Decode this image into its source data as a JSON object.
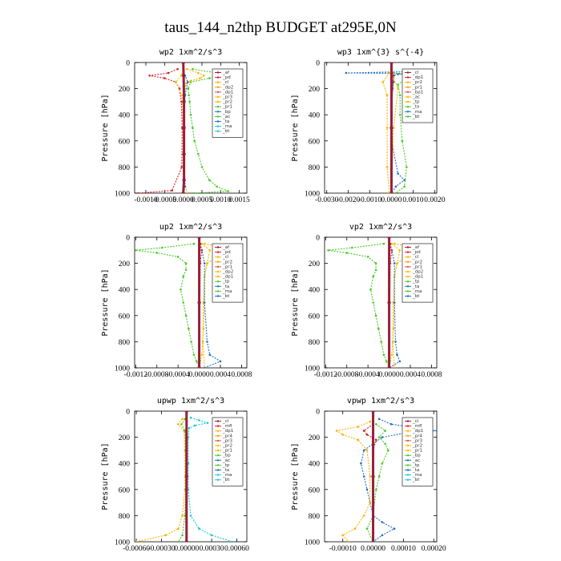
{
  "figure": {
    "title": "taus_144_n2thp  BUDGET at295E,0N"
  },
  "colors": {
    "orange": "#ffb000",
    "red": "#d42020",
    "green": "#44cc22",
    "blue": "#2070c0",
    "cyan": "#18c8d8",
    "purple": "#8a2a8a",
    "maroon": "#9a1e3a",
    "yellow": "#f0c000",
    "lightyellow": "#f5e070"
  },
  "chart_data": [
    {
      "type": "line",
      "title": "wp2   1xm^2/s^3",
      "ylabel": "Pressure [hPa]",
      "xlim": [
        -0.0013,
        0.0017
      ],
      "ylim": [
        1000,
        0
      ],
      "xticks": [
        -0.001,
        -0.0005,
        0.0,
        0.0005,
        0.001,
        0.0015
      ],
      "xtick_labels": [
        "-0.0010",
        "-0.0005",
        "0.0000",
        "0.0005",
        "0.0010",
        "0.0015"
      ],
      "yticks": [
        0,
        200,
        400,
        600,
        800,
        1000
      ],
      "legend": [
        "_af",
        "_pd",
        "_cl",
        "_dp2",
        "_dp1",
        "_pr3",
        "_pr2",
        "_pr1",
        "_bp",
        "_ac",
        "_ta",
        "_ma",
        "_bt"
      ],
      "legend_position": "top-right",
      "series": [
        {
          "color": "green",
          "p": [
            50,
            80,
            100,
            120,
            150,
            200,
            250,
            300,
            400,
            500,
            600,
            700,
            800,
            900,
            950,
            985,
            1000
          ],
          "v": [
            0.00025,
            0.0009,
            0.0015,
            0.0007,
            0.0002,
            0.00013,
            0.00015,
            0.00017,
            0.0002,
            0.00025,
            0.0003,
            0.0004,
            0.0005,
            0.0007,
            0.0009,
            0.0012,
            0.0003
          ]
        },
        {
          "color": "red",
          "p": [
            50,
            80,
            100,
            120,
            150,
            200,
            300,
            500,
            800,
            980,
            1000
          ],
          "v": [
            -0.00015,
            -0.0004,
            -0.0009,
            -0.0005,
            -0.0002,
            -0.0001,
            -5e-05,
            -3e-05,
            -4e-05,
            -0.0003,
            -0.0012
          ]
        },
        {
          "color": "orange",
          "p": [
            50,
            80,
            100,
            120,
            140,
            160,
            200,
            300,
            500,
            700,
            900,
            1000
          ],
          "v": [
            0.0001,
            0.0004,
            0.00055,
            0.00045,
            0.0002,
            8e-05,
            4e-05,
            3e-05,
            2e-05,
            2e-05,
            3e-05,
            0.0001
          ]
        },
        {
          "color": "yellow",
          "p": [
            60,
            100,
            150,
            250,
            500,
            800,
            1000
          ],
          "v": [
            0.0,
            -5e-05,
            -0.0002,
            -3e-05,
            0.0,
            0.0,
            0.0
          ]
        },
        {
          "color": "blue",
          "p": [
            50,
            100,
            150,
            250,
            400,
            700,
            950,
            1000
          ],
          "v": [
            0.0,
            5e-05,
            0.00012,
            5e-05,
            2e-05,
            2e-05,
            5e-05,
            0.0
          ]
        },
        {
          "color": "maroon",
          "p": [
            0,
            100,
            300,
            500,
            700,
            900,
            1000
          ],
          "v": [
            0.0,
            1e-05,
            2e-05,
            2e-05,
            2e-05,
            2e-05,
            0.0
          ]
        }
      ]
    },
    {
      "type": "line",
      "title": "wp3   1xm^{3} s^{-4}",
      "ylabel": "Pressure [hPa]",
      "xlim": [
        -0.0031,
        0.0021
      ],
      "ylim": [
        1000,
        0
      ],
      "xticks": [
        -0.003,
        -0.002,
        -0.001,
        0.0,
        0.001,
        0.002
      ],
      "xtick_labels": [
        "-0.0030",
        "-0.0020",
        "-0.0010",
        "0.0000",
        "0.0010",
        "0.0020"
      ],
      "yticks": [
        0,
        200,
        400,
        600,
        800,
        1000
      ],
      "legend": [
        "_cl",
        "_dp1",
        "_pr2",
        "_pr1",
        "_bp1",
        "_ac",
        "_tp",
        "_ta",
        "_ma",
        "_bt"
      ],
      "legend_position": "top-right",
      "series": [
        {
          "color": "blue",
          "p": [
            70,
            80,
            85,
            90,
            100,
            150,
            300,
            600,
            850,
            900,
            950,
            1000
          ],
          "v": [
            0.0008,
            -0.0021,
            0.0015,
            0.0003,
            0.0001,
            0.0001,
            0.0,
            0.0,
            0.0003,
            0.0006,
            0.0002,
            0.0
          ]
        },
        {
          "color": "green",
          "p": [
            80,
            100,
            130,
            170,
            250,
            400,
            600,
            800,
            950,
            1000
          ],
          "v": [
            0.0001,
            0.0008,
            0.0006,
            0.0003,
            0.0004,
            0.0004,
            0.0005,
            0.0007,
            0.0006,
            0.0002
          ]
        },
        {
          "color": "orange",
          "p": [
            80,
            150,
            250,
            500,
            800,
            1000
          ],
          "v": [
            -0.0001,
            -0.0004,
            -0.0002,
            -0.0002,
            -0.0002,
            -0.0001
          ]
        },
        {
          "color": "yellow",
          "p": [
            80,
            200,
            500,
            1000
          ],
          "v": [
            0.0,
            0.0003,
            0.0001,
            0.0
          ]
        },
        {
          "color": "red",
          "p": [
            50,
            100,
            200,
            500,
            1000
          ],
          "v": [
            0.0,
            0.0001,
            5e-05,
            0.0,
            0.0
          ]
        },
        {
          "color": "maroon",
          "p": [
            0,
            500,
            1000
          ],
          "v": [
            0.0,
            0.0,
            0.0
          ]
        }
      ]
    },
    {
      "type": "line",
      "title": "up2   1xm^2/s^3",
      "ylabel": "Pressure [hPa]",
      "xlim": [
        -0.00122,
        0.0009
      ],
      "ylim": [
        1000,
        0
      ],
      "xticks": [
        -0.0012,
        -0.0008,
        -0.0004,
        0.0,
        0.0004,
        0.0008
      ],
      "xtick_labels": [
        "-0.0012",
        "-0.0008",
        "-0.0004",
        "0.0000",
        "0.0004",
        "0.0008"
      ],
      "yticks": [
        0,
        200,
        400,
        600,
        800,
        1000
      ],
      "legend": [
        "_af",
        "_pd",
        "_cl",
        "_pr2",
        "_pr1",
        "_dp2",
        "_dp1",
        "_tp",
        "_ta",
        "_ma",
        "_bt"
      ],
      "legend_position": "top-right",
      "series": [
        {
          "color": "green",
          "p": [
            50,
            80,
            100,
            120,
            150,
            200,
            250,
            300,
            400,
            500,
            600,
            700,
            800,
            900,
            950,
            1000
          ],
          "v": [
            -0.0001,
            -0.0007,
            -0.0012,
            -0.0008,
            -0.0004,
            -0.00025,
            -0.00025,
            -0.0003,
            -0.00035,
            -0.0003,
            -0.00025,
            -0.0002,
            -0.00015,
            -0.0001,
            -5e-05,
            0.0
          ]
        },
        {
          "color": "orange",
          "p": [
            50,
            80,
            100,
            130,
            160,
            200,
            300,
            500,
            800,
            1000
          ],
          "v": [
            0.0001,
            0.0005,
            0.0008,
            0.0005,
            0.0003,
            0.00015,
            0.0001,
            8e-05,
            7e-05,
            0.0001
          ]
        },
        {
          "color": "yellow",
          "p": [
            50,
            100,
            200,
            300,
            500,
            700,
            900,
            1000
          ],
          "v": [
            5e-05,
            0.0002,
            0.00015,
            0.0001,
            0.0001,
            8e-05,
            5e-05,
            0.0
          ]
        },
        {
          "color": "blue",
          "p": [
            50,
            100,
            200,
            500,
            800,
            900,
            950,
            1000
          ],
          "v": [
            0.0,
            5e-05,
            0.0001,
            0.0001,
            0.00015,
            0.0002,
            0.0004,
            0.0001
          ]
        },
        {
          "color": "red",
          "p": [
            50,
            100,
            200,
            1000
          ],
          "v": [
            2e-05,
            5e-05,
            2e-05,
            0.0
          ]
        },
        {
          "color": "maroon",
          "p": [
            0,
            500,
            1000
          ],
          "v": [
            0.0,
            0.0,
            0.0
          ]
        }
      ]
    },
    {
      "type": "line",
      "title": "vp2   1xm^2/s^3",
      "ylabel": "Pressure [hPa]",
      "xlim": [
        -0.00122,
        0.0009
      ],
      "ylim": [
        1000,
        0
      ],
      "xticks": [
        -0.0012,
        -0.0008,
        -0.0004,
        0.0,
        0.0004,
        0.0008
      ],
      "xtick_labels": [
        "-0.0012",
        "-0.0008",
        "-0.0004",
        "0.0000",
        "0.0004",
        "0.0008"
      ],
      "yticks": [
        0,
        200,
        400,
        600,
        800,
        1000
      ],
      "legend": [
        "_af",
        "_pd",
        "_cl",
        "_pr2",
        "_pr1",
        "_dp2",
        "_dp1",
        "_tp",
        "_ta",
        "_ma",
        "_bt"
      ],
      "legend_position": "top-right",
      "series": [
        {
          "color": "green",
          "p": [
            50,
            80,
            100,
            120,
            150,
            200,
            250,
            300,
            400,
            500,
            600,
            700,
            800,
            900,
            950,
            1000
          ],
          "v": [
            -0.0001,
            -0.0007,
            -0.00115,
            -0.0008,
            -0.0004,
            -0.00025,
            -0.00025,
            -0.0003,
            -0.00035,
            -0.0003,
            -0.00025,
            -0.0002,
            -0.00015,
            -0.0001,
            -5e-05,
            0.0
          ]
        },
        {
          "color": "orange",
          "p": [
            50,
            80,
            100,
            130,
            160,
            200,
            300,
            500,
            800,
            1000
          ],
          "v": [
            0.0001,
            0.0005,
            0.0008,
            0.0005,
            0.0003,
            0.00015,
            0.0001,
            8e-05,
            7e-05,
            0.0001
          ]
        },
        {
          "color": "yellow",
          "p": [
            50,
            100,
            200,
            300,
            500,
            700,
            900,
            1000
          ],
          "v": [
            5e-05,
            0.0002,
            0.00015,
            0.0001,
            0.0001,
            8e-05,
            5e-05,
            0.0
          ]
        },
        {
          "color": "blue",
          "p": [
            50,
            100,
            200,
            500,
            800,
            900,
            950,
            1000
          ],
          "v": [
            0.0,
            5e-05,
            0.0001,
            0.0001,
            0.00012,
            0.00015,
            0.0002,
            0.0
          ]
        },
        {
          "color": "red",
          "p": [
            50,
            100,
            200,
            1000
          ],
          "v": [
            2e-05,
            5e-05,
            2e-05,
            0.0
          ]
        },
        {
          "color": "maroon",
          "p": [
            0,
            500,
            1000
          ],
          "v": [
            0.0,
            0.0,
            0.0
          ]
        }
      ]
    },
    {
      "type": "line",
      "title": "upwp   1xm^2/s^3",
      "ylabel": "Pressure [hPa]",
      "xlim": [
        -0.00062,
        0.00072
      ],
      "ylim": [
        1000,
        0
      ],
      "xticks": [
        -0.0006,
        -0.0003,
        0.0,
        0.0003,
        0.0006
      ],
      "xtick_labels": [
        "-0.00060",
        "-0.00030",
        "0.00000",
        "0.00030",
        "0.00060"
      ],
      "yticks": [
        0,
        200,
        400,
        600,
        800,
        1000
      ],
      "legend": [
        "_cl",
        "_mfl",
        "_dp1",
        "_pr4",
        "_pr3",
        "_pr2",
        "_pr1",
        "_bp",
        "_ac",
        "_tp",
        "_ta",
        "_ma",
        "_bt"
      ],
      "legend_position": "top-right",
      "series": [
        {
          "color": "cyan",
          "p": [
            50,
            70,
            90,
            110,
            130,
            200,
            400,
            600,
            800,
            900,
            950,
            1000
          ],
          "v": [
            5e-05,
            0.00015,
            0.00025,
            0.0001,
            3e-05,
            2e-05,
            2e-05,
            2e-05,
            5e-05,
            0.00015,
            0.0003,
            0.00055
          ]
        },
        {
          "color": "orange",
          "p": [
            60,
            100,
            150,
            300,
            600,
            800,
            900,
            950,
            1000
          ],
          "v": [
            -5e-05,
            -0.0001,
            -3e-05,
            -2e-05,
            -2e-05,
            -5e-05,
            -0.0001,
            -0.00025,
            -0.0006
          ]
        },
        {
          "color": "green",
          "p": [
            60,
            100,
            150,
            300,
            600,
            800,
            950,
            1000
          ],
          "v": [
            -2e-05,
            -6e-05,
            -2e-05,
            -1e-05,
            -1e-05,
            -2e-05,
            -5e-05,
            -0.0001
          ]
        },
        {
          "color": "maroon",
          "p": [
            0,
            500,
            1000
          ],
          "v": [
            0.0,
            0.0,
            0.0
          ]
        }
      ]
    },
    {
      "type": "line",
      "title": "vpwp   1xm^2/s^3",
      "ylabel": "Pressure [hPa]",
      "xlim": [
        -0.00016,
        0.00021
      ],
      "ylim": [
        1000,
        0
      ],
      "xticks": [
        -0.0001,
        0.0,
        0.0001,
        0.0002
      ],
      "xtick_labels": [
        "-0.00010",
        "0.00000",
        "0.00010",
        "0.00020"
      ],
      "yticks": [
        0,
        200,
        400,
        600,
        800,
        1000
      ],
      "legend": [
        "_cl",
        "_mfl",
        "_dp1",
        "_pr4",
        "_pr3",
        "_pr2",
        "_pr1",
        "_bp",
        "_ac",
        "_tp",
        "_ta",
        "_ma",
        "_bt"
      ],
      "legend_position": "top-right",
      "series": [
        {
          "color": "blue",
          "p": [
            60,
            100,
            130,
            150,
            170,
            200,
            250,
            300,
            400,
            500,
            600,
            700,
            800,
            850,
            900,
            950,
            1000
          ],
          "v": [
            2e-05,
            6e-05,
            0.00015,
            0.00021,
            0.0001,
            3e-05,
            0.0,
            -3e-05,
            -4e-05,
            -3e-05,
            -2e-05,
            -1e-05,
            0.0,
            3e-05,
            7e-05,
            3e-05,
            0.0
          ]
        },
        {
          "color": "orange",
          "p": [
            80,
            120,
            150,
            180,
            220,
            300,
            500,
            700,
            800,
            900,
            950,
            1000
          ],
          "v": [
            -1e-05,
            -5e-05,
            -0.00012,
            -0.0001,
            -5e-05,
            -2e-05,
            -1e-05,
            -1e-05,
            -3e-05,
            -6e-05,
            -0.0001,
            -8e-05
          ]
        },
        {
          "color": "green",
          "p": [
            100,
            150,
            200,
            250,
            300,
            400,
            500,
            600,
            800,
            900,
            1000
          ],
          "v": [
            1e-05,
            4e-05,
            2e-05,
            4e-05,
            5e-05,
            3e-05,
            2e-05,
            1e-05,
            0.0,
            -2e-05,
            0.0
          ]
        },
        {
          "color": "red",
          "p": [
            100,
            150,
            180,
            220,
            300,
            1000
          ],
          "v": [
            0.0,
            -3e-05,
            -2e-05,
            1e-05,
            0.0,
            0.0
          ]
        },
        {
          "color": "maroon",
          "p": [
            0,
            500,
            1000
          ],
          "v": [
            0.0,
            0.0,
            0.0
          ]
        }
      ]
    }
  ]
}
